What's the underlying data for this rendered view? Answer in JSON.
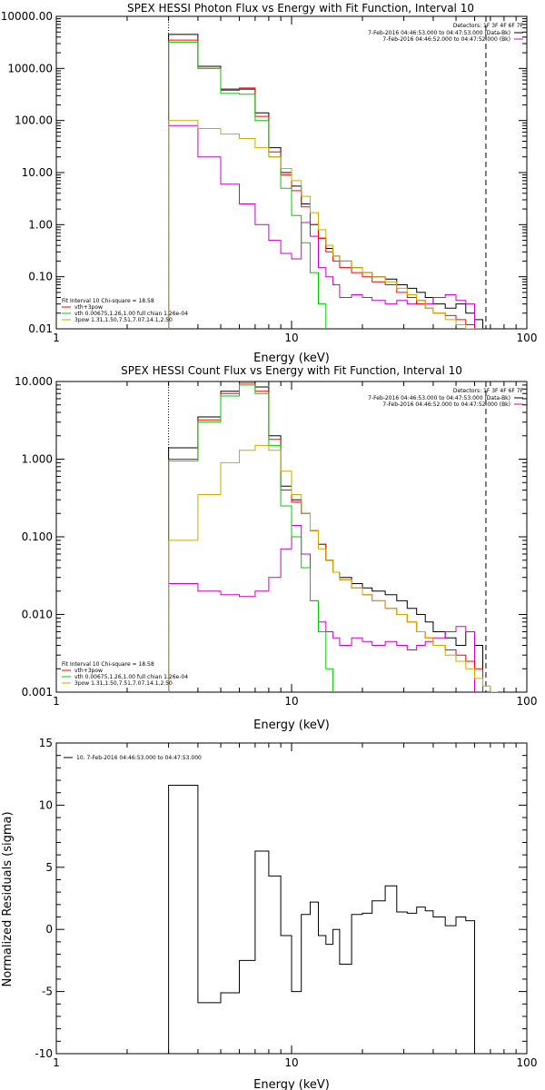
{
  "chart_data": [
    {
      "type": "line",
      "title": "SPEX HESSI Photon Flux vs Energy with Fit Function, Interval 10",
      "xlabel": "Energy (keV)",
      "ylabel": "",
      "xscale": "log",
      "yscale": "log",
      "xlim": [
        1,
        100
      ],
      "ylim": [
        0.01,
        10000
      ],
      "x_ticks": [
        "1",
        "10",
        "100"
      ],
      "y_ticks": [
        "0.01",
        "0.10",
        "1.00",
        "10.00",
        "100.00",
        "1000.00",
        "10000.00"
      ],
      "bin_edges_kev": [
        3,
        4,
        5,
        6,
        7,
        8,
        9,
        10,
        11,
        12,
        13,
        14,
        15,
        16,
        18,
        20,
        22,
        25,
        28,
        31,
        34,
        37,
        40,
        45,
        50,
        55,
        60,
        65,
        70,
        75,
        80
      ],
      "vline_dotted_kev": 3,
      "vline_dashed_kev": 67,
      "legend_right": {
        "header": "Detectors: 1F 3F 4F 6F 7F",
        "entries": [
          {
            "text": "7-Feb-2016 04:46:53.000 to 04:47:53.000 (Data-Bk)",
            "color": "#000000"
          },
          {
            "text": "7-Feb-2016 04:46:52.000 to 04:47:52.000 (Bk)",
            "color": "#cc00cc"
          }
        ]
      },
      "legend_left": {
        "header": "Fit Interval 10   Chi-square = 18.58",
        "entries": [
          {
            "text": "vth+3pow",
            "color": "#ff0000"
          },
          {
            "text": "vth 0.00675,1.26,1.00  full chian 1.26e-04",
            "color": "#00cc00"
          },
          {
            "text": "3pow 1.31,1.50,7.51,7.07,14.1,2.50",
            "color": "#ccaa00"
          }
        ]
      },
      "series": [
        {
          "name": "Data-Bk",
          "color": "#000000",
          "values": [
            4500,
            1100,
            400,
            400,
            140,
            30,
            10,
            5.5,
            2.5,
            1.0,
            0.55,
            0.35,
            0.25,
            0.2,
            0.15,
            0.12,
            0.1,
            0.09,
            0.07,
            0.06,
            0.05,
            0.04,
            0.03,
            0.025,
            0.03,
            0.02,
            0.015,
            null,
            null,
            null
          ]
        },
        {
          "name": "Bk",
          "color": "#cc00cc",
          "values": [
            80,
            20,
            6,
            2.5,
            1.0,
            0.5,
            0.28,
            0.22,
            1.1,
            0.6,
            0.15,
            0.1,
            0.07,
            0.04,
            0.045,
            0.04,
            0.035,
            0.03,
            0.035,
            0.03,
            0.035,
            0.03,
            0.04,
            0.045,
            0.035,
            0.03,
            null,
            null,
            null,
            null
          ]
        },
        {
          "name": "vth+3pow",
          "color": "#ff0000",
          "values": [
            3500,
            1000,
            380,
            420,
            120,
            25,
            9,
            4.5,
            2.2,
            1.0,
            0.55,
            0.3,
            0.2,
            0.15,
            0.12,
            0.1,
            0.08,
            0.07,
            0.05,
            0.04,
            0.03,
            0.025,
            0.02,
            0.018,
            0.015,
            0.012,
            0.01,
            null,
            null,
            null
          ]
        },
        {
          "name": "vth",
          "color": "#00cc00",
          "values": [
            3200,
            1000,
            330,
            320,
            100,
            20,
            5,
            1.5,
            0.45,
            0.12,
            0.03,
            0.009,
            null,
            null,
            null,
            null,
            null,
            null,
            null,
            null,
            null,
            null,
            null,
            null,
            null,
            null,
            null,
            null,
            null,
            null
          ]
        },
        {
          "name": "3pow",
          "color": "#ccaa00",
          "values": [
            100,
            70,
            55,
            45,
            30,
            20,
            12,
            7,
            3.5,
            1.7,
            0.8,
            0.4,
            0.25,
            0.2,
            0.15,
            0.12,
            0.1,
            0.08,
            0.06,
            0.045,
            0.035,
            0.025,
            0.02,
            0.015,
            0.012,
            0.01,
            0.009,
            null,
            null,
            null
          ]
        }
      ]
    },
    {
      "type": "line",
      "title": "SPEX HESSI Count Flux vs Energy with Fit Function, Interval 10",
      "xlabel": "Energy (keV)",
      "ylabel": "",
      "xscale": "log",
      "yscale": "log",
      "xlim": [
        1,
        100
      ],
      "ylim": [
        0.001,
        10
      ],
      "x_ticks": [
        "1",
        "10",
        "100"
      ],
      "y_ticks": [
        "0.001",
        "0.010",
        "0.100",
        "1.000",
        "10.000"
      ],
      "bin_edges_kev": [
        3,
        4,
        5,
        6,
        7,
        8,
        9,
        10,
        11,
        12,
        13,
        14,
        15,
        16,
        18,
        20,
        22,
        25,
        28,
        31,
        34,
        37,
        40,
        45,
        50,
        55,
        60,
        65,
        70,
        75,
        80
      ],
      "vline_dotted_kev": 3,
      "vline_dashed_kev": 67,
      "legend_right": {
        "header": "Detectors: 1F 3F 4F 6F 7F",
        "entries": [
          {
            "text": "7-Feb-2016 04:46:53.000 to 04:47:53.000 (Data-Bk)",
            "color": "#000000"
          },
          {
            "text": "7-Feb-2016 04:46:52.000 to 04:47:52.000 (Bk)",
            "color": "#cc00cc"
          }
        ]
      },
      "legend_left": {
        "header": "Fit Interval 10   Chi-square = 18.58",
        "entries": [
          {
            "text": "vth+3pow",
            "color": "#ff0000"
          },
          {
            "text": "vth 0.00675,1.26,1.00  full chian 1.26e-04",
            "color": "#00cc00"
          },
          {
            "text": "3pow 1.31,1.50,7.51,7.07,14.1,2.50",
            "color": "#ccaa00"
          }
        ]
      },
      "series": [
        {
          "name": "Data-Bk",
          "color": "#000000",
          "values": [
            1.4,
            3.5,
            7.5,
            10.0,
            8.5,
            2.0,
            0.45,
            0.3,
            0.2,
            0.12,
            0.08,
            0.05,
            0.035,
            0.03,
            0.025,
            0.022,
            0.02,
            0.018,
            0.015,
            0.012,
            0.01,
            0.008,
            0.006,
            0.005,
            0.004,
            0.006,
            0.004,
            null,
            null,
            null
          ]
        },
        {
          "name": "Bk",
          "color": "#cc00cc",
          "values": [
            0.025,
            0.02,
            0.018,
            0.017,
            0.02,
            0.03,
            0.07,
            0.14,
            0.06,
            0.015,
            0.008,
            0.006,
            0.005,
            0.004,
            0.005,
            0.0045,
            0.004,
            0.0045,
            0.004,
            0.0035,
            0.004,
            0.0045,
            0.005,
            0.006,
            0.007,
            0.006,
            null,
            null,
            null,
            null
          ]
        },
        {
          "name": "vth+3pow",
          "color": "#ff0000",
          "values": [
            1.0,
            3.2,
            7.0,
            9.5,
            7.5,
            1.8,
            0.4,
            0.28,
            0.2,
            0.12,
            0.08,
            0.05,
            0.035,
            0.028,
            0.022,
            0.018,
            0.015,
            0.012,
            0.01,
            0.008,
            0.006,
            0.005,
            0.004,
            0.0035,
            0.003,
            0.0025,
            0.002,
            null,
            null,
            null
          ]
        },
        {
          "name": "vth",
          "color": "#00cc00",
          "values": [
            0.95,
            3.0,
            6.5,
            9.0,
            7.0,
            1.5,
            0.25,
            0.1,
            0.04,
            0.015,
            0.006,
            0.002,
            0.0009,
            null,
            null,
            null,
            null,
            null,
            null,
            null,
            null,
            null,
            null,
            null,
            null,
            null,
            null,
            null,
            null,
            null
          ]
        },
        {
          "name": "3pow",
          "color": "#ccaa00",
          "values": [
            0.09,
            0.35,
            0.9,
            1.3,
            1.5,
            1.3,
            0.7,
            0.35,
            0.2,
            0.12,
            0.07,
            0.05,
            0.035,
            0.028,
            0.022,
            0.018,
            0.015,
            0.012,
            0.01,
            0.008,
            0.006,
            0.005,
            0.004,
            0.003,
            0.0025,
            0.002,
            0.0015,
            0.0012,
            0.001,
            null
          ]
        }
      ]
    },
    {
      "type": "line",
      "title": "",
      "xlabel": "Energy (keV)",
      "ylabel": "Normalized Residuals (sigma)",
      "xscale": "log",
      "yscale": "linear",
      "xlim": [
        1,
        100
      ],
      "ylim": [
        -10,
        15
      ],
      "x_ticks": [
        "1",
        "10",
        "100"
      ],
      "y_ticks": [
        "-10",
        "-5",
        "0",
        "5",
        "10",
        "15"
      ],
      "bin_edges_kev": [
        3,
        4,
        5,
        6,
        7,
        8,
        9,
        10,
        11,
        12,
        13,
        14,
        15,
        16,
        18,
        20,
        22,
        25,
        28,
        31,
        34,
        37,
        40,
        45,
        50,
        55,
        60,
        65,
        70
      ],
      "legend_left": {
        "header": "",
        "entries": [
          {
            "text": "10.  7-Feb-2016 04:46:53.000 to 04:47:53.000",
            "color": "#000000"
          }
        ]
      },
      "series": [
        {
          "name": "10.  7-Feb-2016 04:46:53.000 to 04:47:53.000",
          "color": "#000000",
          "values": [
            11.6,
            -5.9,
            -5.1,
            -2.5,
            6.3,
            4.3,
            -0.5,
            -5.0,
            1.2,
            2.2,
            -0.5,
            -1.2,
            0.0,
            -2.8,
            1.2,
            1.3,
            2.3,
            3.5,
            1.4,
            1.3,
            1.8,
            1.5,
            1.0,
            0.3,
            1.0,
            0.7,
            null,
            null
          ]
        }
      ]
    }
  ]
}
